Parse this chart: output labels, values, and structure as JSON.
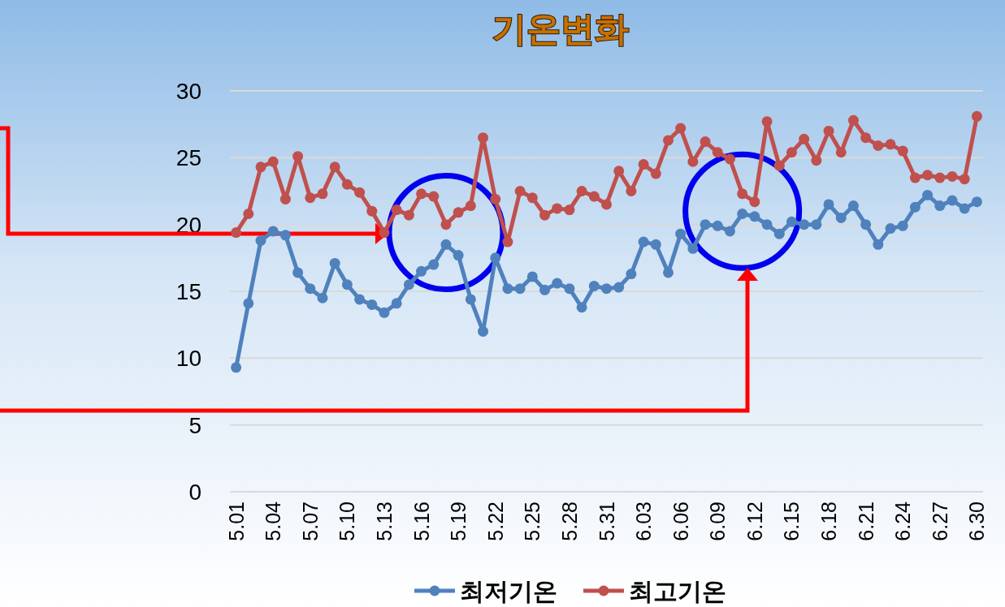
{
  "chart_data": {
    "type": "line",
    "title": "기온변화",
    "categories": [
      "5.01",
      null,
      null,
      "5.04",
      null,
      null,
      "5.07",
      null,
      null,
      "5.10",
      null,
      null,
      "5.13",
      null,
      null,
      "5.16",
      null,
      null,
      "5.19",
      null,
      null,
      "5.22",
      null,
      null,
      "5.25",
      null,
      null,
      "5.28",
      null,
      null,
      "5.31",
      null,
      null,
      "6.03",
      null,
      null,
      "6.06",
      null,
      null,
      "6.09",
      null,
      null,
      "6.12",
      null,
      null,
      "6.15",
      null,
      null,
      "6.18",
      null,
      null,
      "6.21",
      null,
      null,
      "6.24",
      null,
      null,
      "6.27",
      null,
      null,
      "6.30"
    ],
    "series": [
      {
        "name": "최저기온",
        "color": "#4f81bd",
        "values": [
          9.3,
          14.1,
          18.8,
          19.5,
          19.2,
          16.4,
          15.2,
          14.5,
          17.1,
          15.5,
          14.4,
          14.0,
          13.4,
          14.1,
          15.5,
          16.5,
          17.0,
          18.5,
          17.7,
          14.4,
          12.0,
          17.5,
          15.2,
          15.2,
          16.1,
          15.1,
          15.6,
          15.2,
          13.8,
          15.4,
          15.2,
          15.3,
          16.3,
          18.7,
          18.5,
          16.4,
          19.3,
          18.2,
          20.0,
          19.9,
          19.5,
          20.8,
          20.6,
          20.0,
          19.3,
          20.2,
          20.0,
          20.0,
          21.5,
          20.5,
          21.4,
          20.0,
          18.5,
          19.7,
          19.9,
          21.3,
          22.2,
          21.4,
          21.8,
          21.2,
          21.7
        ]
      },
      {
        "name": "최고기온",
        "color": "#c0504d",
        "values": [
          19.4,
          20.8,
          24.3,
          24.7,
          21.9,
          25.1,
          22.0,
          22.3,
          24.3,
          23.0,
          22.4,
          21.0,
          19.4,
          21.1,
          20.7,
          22.3,
          22.1,
          20.0,
          20.9,
          21.4,
          26.5,
          21.9,
          18.7,
          22.5,
          22.0,
          20.7,
          21.2,
          21.1,
          22.5,
          22.1,
          21.5,
          24.0,
          22.5,
          24.5,
          23.8,
          26.3,
          27.2,
          24.7,
          26.2,
          25.4,
          24.9,
          22.3,
          21.7,
          27.7,
          24.4,
          25.4,
          26.4,
          24.8,
          27.0,
          25.4,
          27.8,
          26.5,
          25.9,
          26.0,
          25.5,
          23.5,
          23.7,
          23.5,
          23.6,
          23.4,
          28.1
        ]
      }
    ],
    "ylim": [
      0,
      30
    ],
    "yticks": [
      0,
      5,
      10,
      15,
      20,
      25,
      30
    ],
    "grid": "y",
    "legend": "bottom",
    "marker": "circle",
    "line_style": "solid"
  }
}
